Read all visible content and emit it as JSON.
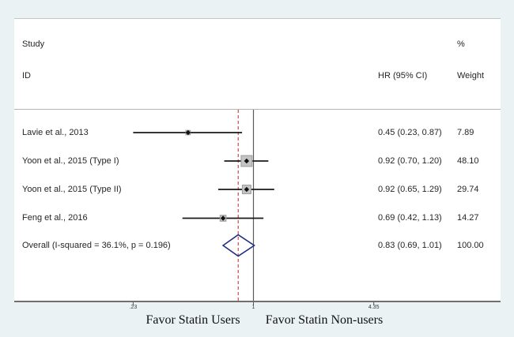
{
  "chart_data": {
    "type": "forest",
    "title": "",
    "columns": {
      "study_header_line1": "Study",
      "study_header_line2": "ID",
      "percent_header": "%",
      "hr_header": "HR (95% CI)",
      "weight_header": "Weight"
    },
    "studies": [
      {
        "id": "Lavie et al., 2013",
        "hr": 0.45,
        "ci_low": 0.23,
        "ci_high": 0.87,
        "hr_ci": "0.45 (0.23, 0.87)",
        "weight": 7.89,
        "weight_label": "7.89"
      },
      {
        "id": "Yoon et al., 2015 (Type I)",
        "hr": 0.92,
        "ci_low": 0.7,
        "ci_high": 1.2,
        "hr_ci": "0.92 (0.70, 1.20)",
        "weight": 48.1,
        "weight_label": "48.10"
      },
      {
        "id": "Yoon et al., 2015 (Type II)",
        "hr": 0.92,
        "ci_low": 0.65,
        "ci_high": 1.29,
        "hr_ci": "0.92 (0.65, 1.29)",
        "weight": 29.74,
        "weight_label": "29.74"
      },
      {
        "id": "Feng et al., 2016",
        "hr": 0.69,
        "ci_low": 0.42,
        "ci_high": 1.13,
        "hr_ci": "0.69 (0.42, 1.13)",
        "weight": 14.27,
        "weight_label": "14.27"
      }
    ],
    "overall": {
      "label": "Overall  (I-squared = 36.1%, p = 0.196)",
      "hr": 0.83,
      "ci_low": 0.69,
      "ci_high": 1.01,
      "hr_ci": "0.83 (0.69, 1.01)",
      "weight": 100.0,
      "weight_label": "100.00"
    },
    "heterogeneity": "I-squared = 36.1%, p = 0.196",
    "x_axis": {
      "scale": "log",
      "ticks": [
        {
          "label": ".23",
          "value": 0.23
        },
        {
          "label": "1",
          "value": 1
        },
        {
          "label": "4.35",
          "value": 4.35
        }
      ],
      "null_line_value": 1,
      "overall_dashed_value": 0.83
    },
    "x_labels": {
      "left": "Favor Statin Users",
      "right": "Favor Statin Non-users"
    },
    "colors": {
      "background": "#eaf2f3",
      "diamond": "#202e85",
      "ref_dashed": "#c23b3b",
      "null_line": "#5a5a5a",
      "ci_line": "#1a1a1a",
      "box_fill": "#c4c4c4",
      "box_border": "#9b9b9b",
      "axis": "#6f6f6f"
    }
  }
}
